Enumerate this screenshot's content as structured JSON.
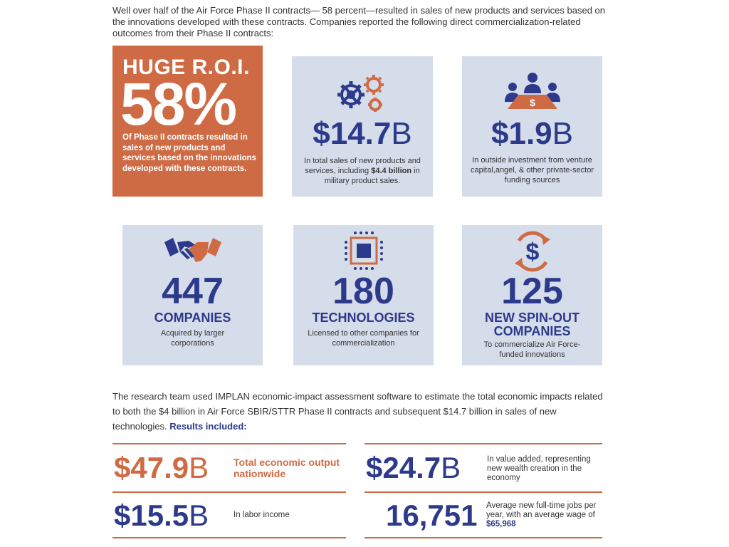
{
  "intro": "Well over half of the Air Force Phase II contracts— 58 percent—resulted in sales of new products and services based on the innovations developed with these contracts. Companies reported the following direct commercialization-related outcomes from their Phase II contracts:",
  "roi": {
    "label": "HUGE R.O.I.",
    "percent": "58%",
    "description": "Of Phase II contracts resulted in sales of new products and services based on the innovations developed with these contracts."
  },
  "sales": {
    "amount": "$14.7",
    "unit": "B",
    "desc_a": "In total sales of new products and services, including ",
    "desc_bold": "$4.4 billion",
    "desc_b": " in military product sales."
  },
  "investment": {
    "amount": "$1.9",
    "unit": "B",
    "description": "In outside investment from venture capital,angel, & other private-sector funding sources"
  },
  "companies": {
    "number": "447",
    "title": "COMPANIES",
    "description": "Acquired by larger corporations"
  },
  "technologies": {
    "number": "180",
    "title": "TECHNOLOGIES",
    "description": "Licensed to other companies for commercialization"
  },
  "spinouts": {
    "number": "125",
    "title": "NEW SPIN-OUT COMPANIES",
    "description": "To commercialize Air Force-funded innovations"
  },
  "research": {
    "text": "The research team used IMPLAN economic-impact assessment software to estimate the total economic impacts related to both the $4 billion in Air Force SBIR/STTR Phase II contracts and subsequent $14.7 billion in sales of new technologies. ",
    "bold": "Results included:"
  },
  "results": {
    "output": {
      "amount": "$47.9",
      "unit": "B",
      "text": "Total economic output nationwide"
    },
    "value_added": {
      "amount": "$24.7",
      "unit": "B",
      "text": "In value added, representing new wealth creation in the economy"
    },
    "labor": {
      "amount": "$15.5",
      "unit": "B",
      "text": "In labor income"
    },
    "jobs": {
      "amount": "16,751",
      "text": "Average new full-time jobs per year, with an average wage of ",
      "wage": "$65,968"
    }
  },
  "colors": {
    "orange": "#cf6b44",
    "navy": "#2d3a8c",
    "card": "#d5dcea"
  }
}
